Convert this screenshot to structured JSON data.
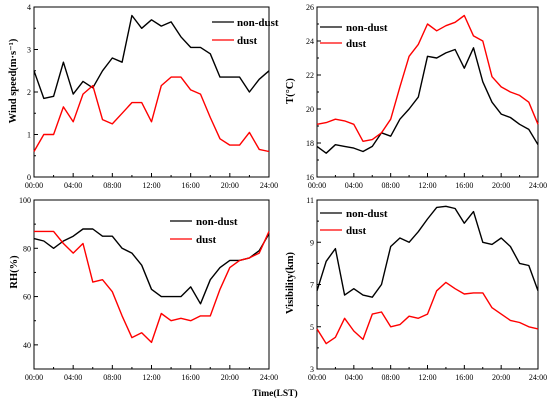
{
  "chart_data": [
    {
      "type": "line",
      "ylabel": "Wind speed(m·s⁻¹)",
      "xlabel": "",
      "x": [
        0,
        1,
        2,
        3,
        4,
        5,
        6,
        7,
        8,
        9,
        10,
        11,
        12,
        13,
        14,
        15,
        16,
        17,
        18,
        19,
        20,
        21,
        22,
        23,
        24
      ],
      "xticks": [
        "00:00",
        "04:00",
        "08:00",
        "12:00",
        "16:00",
        "20:00",
        "24:00"
      ],
      "xlim": [
        0,
        24
      ],
      "ylim": [
        0,
        4
      ],
      "yticks": [
        "0",
        "1",
        "2",
        "3",
        "4"
      ],
      "legend_position": "top-right",
      "series": [
        {
          "name": "non-dust",
          "color": "#000000",
          "values": [
            2.5,
            1.85,
            1.9,
            2.7,
            1.95,
            2.25,
            2.1,
            2.5,
            2.8,
            2.7,
            3.8,
            3.5,
            3.7,
            3.55,
            3.65,
            3.3,
            3.05,
            3.05,
            2.9,
            2.35,
            2.35,
            2.35,
            2.0,
            2.3,
            2.5
          ]
        },
        {
          "name": "dust",
          "color": "#ff0000",
          "values": [
            0.6,
            1.0,
            1.0,
            1.65,
            1.3,
            1.95,
            2.15,
            1.35,
            1.25,
            1.5,
            1.75,
            1.75,
            1.3,
            2.15,
            2.35,
            2.35,
            2.05,
            1.95,
            1.4,
            0.9,
            0.75,
            0.75,
            1.05,
            0.65,
            0.6
          ]
        }
      ]
    },
    {
      "type": "line",
      "ylabel": "T(°C)",
      "xlabel": "",
      "x": [
        0,
        1,
        2,
        3,
        4,
        5,
        6,
        7,
        8,
        9,
        10,
        11,
        12,
        13,
        14,
        15,
        16,
        17,
        18,
        19,
        20,
        21,
        22,
        23,
        24
      ],
      "xticks": [
        "00:00",
        "04:00",
        "08:00",
        "12:00",
        "16:00",
        "20:00",
        "24:00"
      ],
      "xlim": [
        0,
        24
      ],
      "ylim": [
        16,
        26
      ],
      "yticks": [
        "16",
        "18",
        "20",
        "22",
        "24",
        "26"
      ],
      "legend_position": "top-right",
      "series": [
        {
          "name": "non-dust",
          "color": "#000000",
          "values": [
            17.8,
            17.4,
            17.9,
            17.8,
            17.7,
            17.5,
            17.8,
            18.6,
            18.4,
            19.4,
            20.0,
            20.7,
            23.1,
            23.0,
            23.3,
            23.5,
            22.4,
            23.6,
            21.6,
            20.4,
            19.7,
            19.5,
            19.1,
            18.8,
            17.9
          ]
        },
        {
          "name": "dust",
          "color": "#ff0000",
          "values": [
            19.1,
            19.2,
            19.4,
            19.3,
            19.1,
            18.1,
            18.2,
            18.6,
            19.4,
            21.3,
            23.1,
            23.8,
            25.0,
            24.6,
            24.9,
            25.1,
            25.5,
            24.3,
            24.0,
            21.9,
            21.3,
            21.0,
            20.8,
            20.4,
            19.1
          ]
        }
      ]
    },
    {
      "type": "line",
      "ylabel": "RH(%)",
      "xlabel": "",
      "x": [
        0,
        1,
        2,
        3,
        4,
        5,
        6,
        7,
        8,
        9,
        10,
        11,
        12,
        13,
        14,
        15,
        16,
        17,
        18,
        19,
        20,
        21,
        22,
        23,
        24
      ],
      "xticks": [
        "00:00",
        "04:00",
        "08:00",
        "12:00",
        "16:00",
        "20:00",
        "24:00"
      ],
      "xlim": [
        0,
        24
      ],
      "ylim": [
        30,
        100
      ],
      "yticks": [
        "40",
        "60",
        "80",
        "100"
      ],
      "legend_position": "top-right",
      "series": [
        {
          "name": "non-dust",
          "color": "#000000",
          "values": [
            84,
            83,
            80,
            83,
            85,
            88,
            88,
            85,
            85,
            80,
            78,
            73,
            63,
            60,
            60,
            60,
            64,
            57,
            67,
            72,
            75,
            75,
            76,
            79,
            86
          ]
        },
        {
          "name": "dust",
          "color": "#ff0000",
          "values": [
            87,
            87,
            87,
            82,
            78,
            82,
            66,
            67,
            62,
            52,
            43,
            45,
            41,
            53,
            50,
            51,
            50,
            52,
            52,
            63,
            72,
            75,
            76,
            78,
            87
          ]
        }
      ]
    },
    {
      "type": "line",
      "ylabel": "Visibility(km)",
      "xlabel": "Time(LST)",
      "x": [
        0,
        1,
        2,
        3,
        4,
        5,
        6,
        7,
        8,
        9,
        10,
        11,
        12,
        13,
        14,
        15,
        16,
        17,
        18,
        19,
        20,
        21,
        22,
        23,
        24
      ],
      "xticks": [
        "00:00",
        "04:00",
        "08:00",
        "12:00",
        "16:00",
        "20:00",
        "24:00"
      ],
      "xlim": [
        0,
        24
      ],
      "ylim": [
        3,
        11
      ],
      "yticks": [
        "3",
        "5",
        "7",
        "9",
        "11"
      ],
      "legend_position": "top-left",
      "series": [
        {
          "name": "non-dust",
          "color": "#000000",
          "values": [
            6.7,
            8.1,
            8.7,
            6.5,
            6.8,
            6.5,
            6.4,
            7.0,
            8.8,
            9.2,
            9.0,
            9.5,
            10.1,
            10.65,
            10.7,
            10.6,
            9.9,
            10.45,
            9.0,
            8.9,
            9.2,
            8.8,
            8.0,
            7.9,
            6.7
          ]
        },
        {
          "name": "dust",
          "color": "#ff0000",
          "values": [
            4.9,
            4.2,
            4.5,
            5.4,
            4.8,
            4.4,
            5.6,
            5.7,
            5.0,
            5.1,
            5.5,
            5.4,
            5.6,
            6.7,
            7.1,
            6.8,
            6.55,
            6.6,
            6.6,
            5.9,
            5.6,
            5.3,
            5.2,
            5.0,
            4.9
          ]
        }
      ]
    }
  ]
}
